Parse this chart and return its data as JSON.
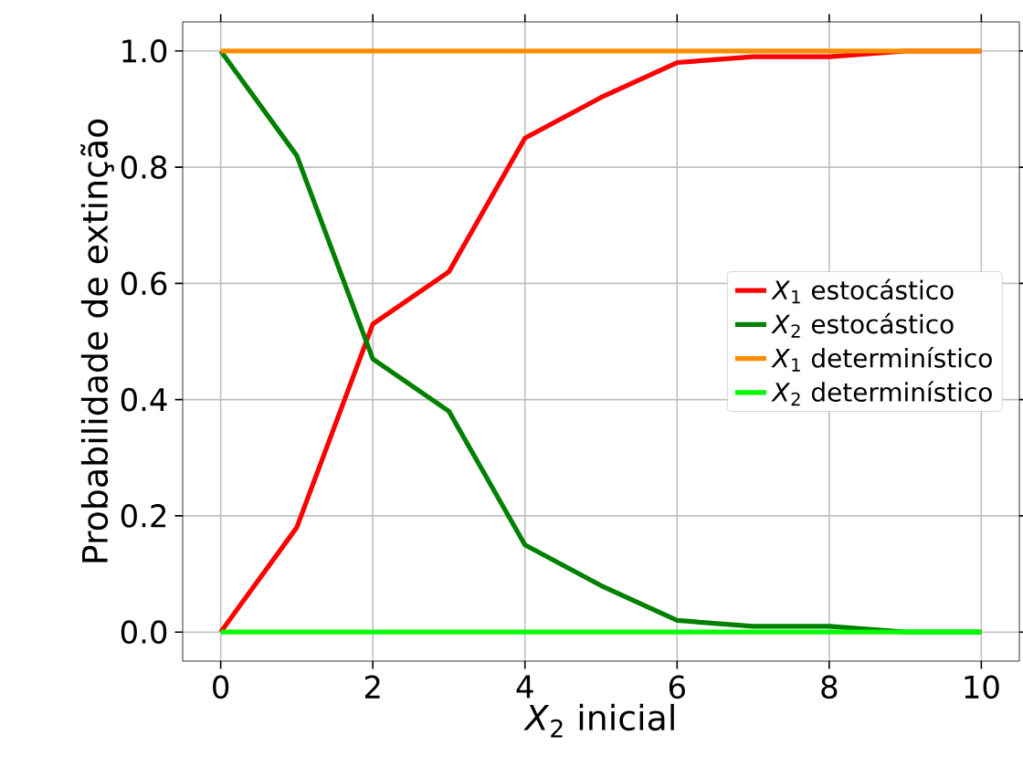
{
  "chart_data": {
    "type": "line",
    "xlabel": "*X*$_{2}$ inicial",
    "ylabel": "Probabilidade de extinção",
    "x": [
      0,
      1,
      2,
      3,
      4,
      5,
      6,
      7,
      8,
      9,
      10
    ],
    "series": [
      {
        "name": "*X*$_{1}$ estocástico",
        "color": "#ff0000",
        "values": [
          0,
          0.18,
          0.53,
          0.62,
          0.85,
          0.92,
          0.98,
          0.99,
          0.99,
          1.0,
          1.0
        ]
      },
      {
        "name": "*X*$_{2}$ estocástico",
        "color": "#008000",
        "values": [
          1.0,
          0.82,
          0.47,
          0.38,
          0.15,
          0.08,
          0.02,
          0.01,
          0.01,
          0.0,
          0.0
        ]
      },
      {
        "name": "*X*$_{1}$ determinístico",
        "color": "#ff8c00",
        "values": [
          1,
          1,
          1,
          1,
          1,
          1,
          1,
          1,
          1,
          1,
          1
        ]
      },
      {
        "name": "*X*$_{2}$ determinístico",
        "color": "#00ff00",
        "values": [
          0,
          0,
          0,
          0,
          0,
          0,
          0,
          0,
          0,
          0,
          0
        ]
      }
    ],
    "xlim": [
      -0.5,
      10.5
    ],
    "ylim": [
      -0.05,
      1.05
    ],
    "xticks": [
      0,
      2,
      4,
      6,
      8,
      10
    ],
    "yticks": [
      {
        "value": 0,
        "label": "0.0"
      },
      {
        "value": 0.2,
        "label": "0.2"
      },
      {
        "value": 0.4,
        "label": "0.4"
      },
      {
        "value": 0.6,
        "label": "0.6"
      },
      {
        "value": 0.8,
        "label": "0.8"
      },
      {
        "value": 1.0,
        "label": "1.0"
      }
    ],
    "grid": true,
    "legend": "right",
    "marker": "none",
    "line_style": "solid"
  }
}
